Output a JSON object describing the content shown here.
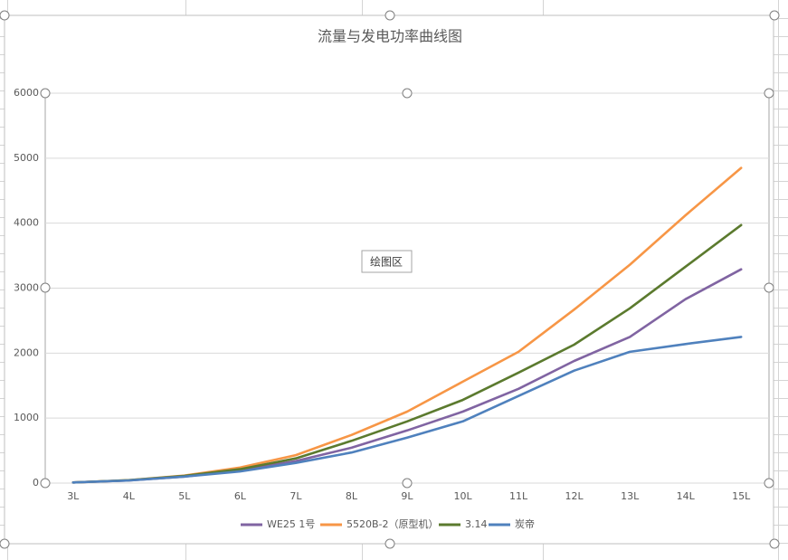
{
  "chart_data": {
    "type": "line",
    "title": "流量与发电功率曲线图",
    "tooltip": "绘图区",
    "categories": [
      "3L",
      "4L",
      "5L",
      "6L",
      "7L",
      "8L",
      "9L",
      "10L",
      "11L",
      "12L",
      "13L",
      "14L",
      "15L"
    ],
    "series": [
      {
        "name": "WE25 1号",
        "color": "#8064a2",
        "values": [
          10,
          40,
          100,
          200,
          340,
          545,
          810,
          1100,
          1450,
          1880,
          2250,
          2830,
          3290
        ]
      },
      {
        "name": "5520B-2（原型机）",
        "color": "#f79646",
        "values": [
          10,
          45,
          115,
          240,
          430,
          740,
          1100,
          1560,
          2020,
          2670,
          3360,
          4120,
          4850
        ]
      },
      {
        "name": "3.14",
        "color": "#5b7a2e",
        "values": [
          10,
          45,
          110,
          215,
          380,
          650,
          950,
          1280,
          1700,
          2130,
          2690,
          3330,
          3970
        ]
      },
      {
        "name": "炭帝",
        "color": "#4f81bd",
        "values": [
          10,
          40,
          100,
          180,
          310,
          470,
          700,
          950,
          1340,
          1730,
          2020,
          2140,
          2250
        ]
      }
    ],
    "ylim": [
      0,
      6000
    ],
    "yticks": [
      0,
      1000,
      2000,
      3000,
      4000,
      5000,
      6000
    ],
    "grid": true,
    "legend": "bottom"
  }
}
